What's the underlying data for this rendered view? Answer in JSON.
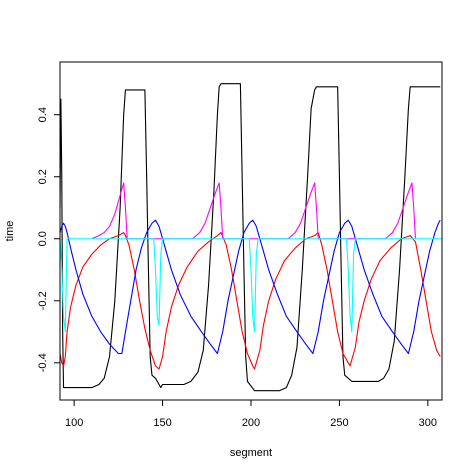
{
  "chart_data": {
    "type": "line",
    "title": "",
    "xlabel": "segment",
    "ylabel": "time",
    "xlim": [
      92,
      308
    ],
    "ylim": [
      -0.52,
      0.57
    ],
    "x_ticks": [
      100,
      150,
      200,
      250,
      300
    ],
    "y_ticks": [
      -0.4,
      -0.2,
      0.0,
      0.2,
      0.4
    ],
    "x_tick_labels": [
      "100",
      "150",
      "200",
      "250",
      "300"
    ],
    "y_tick_labels": [
      "-0.4",
      "-0.2",
      "0.0",
      "0.2",
      "0.4"
    ],
    "grid": false,
    "legend": "none",
    "series": [
      {
        "color": "#000000",
        "points": [
          [
            92,
            0.1
          ],
          [
            92.5,
            0.45
          ],
          [
            93,
            0.2
          ],
          [
            93.5,
            -0.3
          ],
          [
            94,
            -0.48
          ],
          [
            110,
            -0.48
          ],
          [
            114,
            -0.47
          ],
          [
            117,
            -0.45
          ],
          [
            120,
            -0.38
          ],
          [
            123,
            -0.2
          ],
          [
            126,
            0.1
          ],
          [
            128,
            0.4
          ],
          [
            129,
            0.48
          ],
          [
            140,
            0.48
          ],
          [
            141,
            0.2
          ],
          [
            142,
            -0.1
          ],
          [
            143,
            -0.38
          ],
          [
            144,
            -0.44
          ],
          [
            146,
            -0.45
          ],
          [
            148,
            -0.47
          ],
          [
            149,
            -0.48
          ],
          [
            150,
            -0.47
          ],
          [
            162,
            -0.47
          ],
          [
            166,
            -0.46
          ],
          [
            170,
            -0.43
          ],
          [
            173,
            -0.36
          ],
          [
            176,
            -0.15
          ],
          [
            179,
            0.15
          ],
          [
            181,
            0.4
          ],
          [
            182,
            0.49
          ],
          [
            183,
            0.5
          ],
          [
            194,
            0.5
          ],
          [
            195,
            0.2
          ],
          [
            196,
            -0.1
          ],
          [
            197,
            -0.38
          ],
          [
            198,
            -0.46
          ],
          [
            202,
            -0.49
          ],
          [
            216,
            -0.49
          ],
          [
            220,
            -0.48
          ],
          [
            223,
            -0.44
          ],
          [
            226,
            -0.35
          ],
          [
            229,
            -0.1
          ],
          [
            232,
            0.2
          ],
          [
            234,
            0.42
          ],
          [
            236,
            0.48
          ],
          [
            237,
            0.49
          ],
          [
            249,
            0.49
          ],
          [
            250,
            0.2
          ],
          [
            251,
            -0.1
          ],
          [
            252,
            -0.38
          ],
          [
            253,
            -0.44
          ],
          [
            257,
            -0.46
          ],
          [
            272,
            -0.46
          ],
          [
            275,
            -0.45
          ],
          [
            278,
            -0.42
          ],
          [
            281,
            -0.33
          ],
          [
            284,
            -0.1
          ],
          [
            287,
            0.2
          ],
          [
            289,
            0.42
          ],
          [
            290,
            0.49
          ],
          [
            307,
            0.49
          ]
        ]
      },
      {
        "color": "#ff0000",
        "points": [
          [
            92,
            -0.37
          ],
          [
            93,
            -0.4
          ],
          [
            94,
            -0.41
          ],
          [
            95,
            -0.38
          ],
          [
            96,
            -0.3
          ],
          [
            98,
            -0.22
          ],
          [
            101,
            -0.15
          ],
          [
            105,
            -0.09
          ],
          [
            110,
            -0.05
          ],
          [
            115,
            -0.02
          ],
          [
            120,
            0.0
          ],
          [
            125,
            0.01
          ],
          [
            128,
            0.02
          ],
          [
            129,
            0.01
          ],
          [
            131,
            -0.02
          ],
          [
            134,
            -0.1
          ],
          [
            137,
            -0.2
          ],
          [
            140,
            -0.29
          ],
          [
            143,
            -0.36
          ],
          [
            146,
            -0.41
          ],
          [
            148,
            -0.42
          ],
          [
            150,
            -0.38
          ],
          [
            152,
            -0.3
          ],
          [
            155,
            -0.22
          ],
          [
            159,
            -0.15
          ],
          [
            164,
            -0.09
          ],
          [
            170,
            -0.04
          ],
          [
            176,
            -0.01
          ],
          [
            181,
            0.01
          ],
          [
            183,
            0.02
          ],
          [
            186,
            -0.02
          ],
          [
            189,
            -0.1
          ],
          [
            192,
            -0.2
          ],
          [
            195,
            -0.3
          ],
          [
            198,
            -0.37
          ],
          [
            201,
            -0.41
          ],
          [
            202,
            -0.42
          ],
          [
            205,
            -0.36
          ],
          [
            207,
            -0.28
          ],
          [
            210,
            -0.2
          ],
          [
            214,
            -0.13
          ],
          [
            219,
            -0.07
          ],
          [
            225,
            -0.03
          ],
          [
            231,
            0.0
          ],
          [
            236,
            0.01
          ],
          [
            238,
            0.02
          ],
          [
            240,
            -0.02
          ],
          [
            243,
            -0.1
          ],
          [
            246,
            -0.2
          ],
          [
            249,
            -0.3
          ],
          [
            252,
            -0.37
          ],
          [
            255,
            -0.4
          ],
          [
            256,
            -0.41
          ],
          [
            259,
            -0.35
          ],
          [
            261,
            -0.27
          ],
          [
            264,
            -0.2
          ],
          [
            268,
            -0.13
          ],
          [
            273,
            -0.07
          ],
          [
            279,
            -0.03
          ],
          [
            285,
            0.0
          ],
          [
            290,
            0.01
          ],
          [
            293,
            -0.01
          ],
          [
            296,
            -0.1
          ],
          [
            299,
            -0.2
          ],
          [
            302,
            -0.3
          ],
          [
            305,
            -0.36
          ],
          [
            307,
            -0.38
          ]
        ]
      },
      {
        "color": "#0000ff",
        "points": [
          [
            92,
            0.02
          ],
          [
            93,
            0.04
          ],
          [
            94,
            0.05
          ],
          [
            95,
            0.04
          ],
          [
            96,
            0.02
          ],
          [
            98,
            -0.03
          ],
          [
            101,
            -0.1
          ],
          [
            105,
            -0.18
          ],
          [
            110,
            -0.25
          ],
          [
            115,
            -0.3
          ],
          [
            120,
            -0.34
          ],
          [
            125,
            -0.37
          ],
          [
            127,
            -0.37
          ],
          [
            129,
            -0.3
          ],
          [
            132,
            -0.2
          ],
          [
            135,
            -0.1
          ],
          [
            138,
            -0.03
          ],
          [
            141,
            0.02
          ],
          [
            144,
            0.05
          ],
          [
            146,
            0.06
          ],
          [
            148,
            0.04
          ],
          [
            151,
            -0.02
          ],
          [
            155,
            -0.1
          ],
          [
            160,
            -0.18
          ],
          [
            166,
            -0.25
          ],
          [
            172,
            -0.3
          ],
          [
            177,
            -0.34
          ],
          [
            181,
            -0.37
          ],
          [
            184,
            -0.3
          ],
          [
            187,
            -0.2
          ],
          [
            190,
            -0.12
          ],
          [
            193,
            -0.04
          ],
          [
            196,
            0.02
          ],
          [
            199,
            0.05
          ],
          [
            201,
            0.06
          ],
          [
            203,
            0.04
          ],
          [
            206,
            -0.02
          ],
          [
            210,
            -0.1
          ],
          [
            215,
            -0.18
          ],
          [
            220,
            -0.25
          ],
          [
            226,
            -0.3
          ],
          [
            231,
            -0.34
          ],
          [
            235,
            -0.37
          ],
          [
            238,
            -0.3
          ],
          [
            241,
            -0.2
          ],
          [
            244,
            -0.12
          ],
          [
            247,
            -0.04
          ],
          [
            250,
            0.02
          ],
          [
            253,
            0.05
          ],
          [
            255,
            0.06
          ],
          [
            257,
            0.04
          ],
          [
            260,
            -0.02
          ],
          [
            264,
            -0.1
          ],
          [
            269,
            -0.18
          ],
          [
            274,
            -0.25
          ],
          [
            280,
            -0.3
          ],
          [
            285,
            -0.34
          ],
          [
            289,
            -0.37
          ],
          [
            292,
            -0.3
          ],
          [
            295,
            -0.2
          ],
          [
            298,
            -0.12
          ],
          [
            301,
            -0.04
          ],
          [
            304,
            0.02
          ],
          [
            306,
            0.05
          ],
          [
            307,
            0.06
          ]
        ]
      },
      {
        "color": "#ff00ff",
        "points": [
          [
            110,
            0.0
          ],
          [
            114,
            0.01
          ],
          [
            117,
            0.02
          ],
          [
            120,
            0.04
          ],
          [
            123,
            0.08
          ],
          [
            126,
            0.14
          ],
          [
            128,
            0.18
          ],
          [
            129,
            0.1
          ],
          [
            130,
            0.0
          ],
          [
            167,
            0.0
          ],
          [
            171,
            0.02
          ],
          [
            174,
            0.05
          ],
          [
            177,
            0.1
          ],
          [
            180,
            0.15
          ],
          [
            182,
            0.18
          ],
          [
            183,
            0.1
          ],
          [
            184,
            0.0
          ],
          [
            221,
            0.0
          ],
          [
            225,
            0.02
          ],
          [
            228,
            0.05
          ],
          [
            231,
            0.1
          ],
          [
            234,
            0.15
          ],
          [
            236,
            0.18
          ],
          [
            237,
            0.1
          ],
          [
            238,
            0.0
          ],
          [
            276,
            0.0
          ],
          [
            280,
            0.02
          ],
          [
            283,
            0.05
          ],
          [
            286,
            0.1
          ],
          [
            289,
            0.15
          ],
          [
            291,
            0.18
          ],
          [
            292,
            0.1
          ],
          [
            293,
            0.0
          ]
        ]
      },
      {
        "color": "#00ffff",
        "points": [
          [
            92,
            0.0
          ],
          [
            93,
            -0.1
          ],
          [
            94,
            -0.25
          ],
          [
            95,
            -0.3
          ],
          [
            96,
            0.0
          ],
          [
            145,
            0.0
          ],
          [
            146,
            -0.1
          ],
          [
            147,
            -0.25
          ],
          [
            148,
            -0.28
          ],
          [
            149,
            -0.05
          ],
          [
            150,
            0.0
          ],
          [
            199,
            0.0
          ],
          [
            200,
            -0.1
          ],
          [
            201,
            -0.25
          ],
          [
            202,
            -0.3
          ],
          [
            203,
            -0.05
          ],
          [
            204,
            0.0
          ],
          [
            254,
            0.0
          ],
          [
            255,
            -0.1
          ],
          [
            256,
            -0.25
          ],
          [
            257,
            -0.3
          ],
          [
            258,
            -0.05
          ],
          [
            259,
            0.0
          ],
          [
            308,
            0.0
          ]
        ]
      }
    ]
  }
}
